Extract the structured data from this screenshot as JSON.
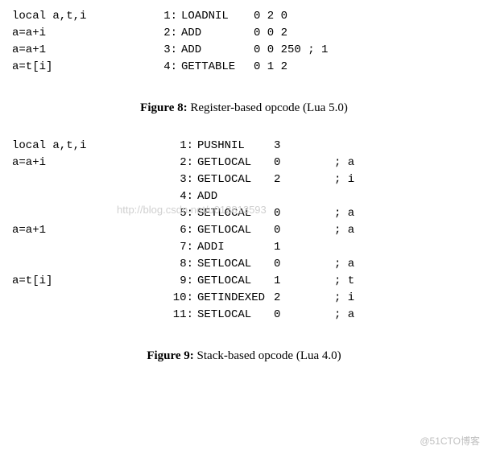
{
  "figure8": {
    "rows": [
      {
        "src": "local a,t,i",
        "num": "1:",
        "op": "LOADNIL",
        "args": "0 2 0",
        "cmt": ""
      },
      {
        "src": "a=a+i",
        "num": "2:",
        "op": "ADD",
        "args": "0 0 2",
        "cmt": ""
      },
      {
        "src": "a=a+1",
        "num": "3:",
        "op": "ADD",
        "args": "0 0 250 ; 1",
        "cmt": ""
      },
      {
        "src": "a=t[i]",
        "num": "4:",
        "op": "GETTABLE",
        "args": "0 1 2",
        "cmt": ""
      }
    ],
    "caption_label": "Figure 8:",
    "caption_text": " Register-based opcode (Lua 5.0)"
  },
  "figure9": {
    "rows": [
      {
        "src": "local a,t,i",
        "num": "1:",
        "op": "PUSHNIL",
        "args": "3",
        "cmt": ""
      },
      {
        "src": "a=a+i",
        "num": "2:",
        "op": "GETLOCAL",
        "args": "0",
        "cmt": "; a"
      },
      {
        "src": "",
        "num": "3:",
        "op": "GETLOCAL",
        "args": "2",
        "cmt": "; i"
      },
      {
        "src": "",
        "num": "4:",
        "op": "ADD",
        "args": "",
        "cmt": ""
      },
      {
        "src": "",
        "num": "5:",
        "op": "SETLOCAL",
        "args": "0",
        "cmt": "; a"
      },
      {
        "src": "a=a+1",
        "num": "6:",
        "op": "GETLOCAL",
        "args": "0",
        "cmt": "; a"
      },
      {
        "src": "",
        "num": "7:",
        "op": "ADDI",
        "args": "1",
        "cmt": ""
      },
      {
        "src": "",
        "num": "8:",
        "op": "SETLOCAL",
        "args": "0",
        "cmt": "; a"
      },
      {
        "src": "a=t[i]",
        "num": "9:",
        "op": "GETLOCAL",
        "args": "1",
        "cmt": "; t"
      },
      {
        "src": "",
        "num": "10:",
        "op": "GETINDEXED",
        "args": "2",
        "cmt": "; i"
      },
      {
        "src": "",
        "num": "11:",
        "op": "SETLOCAL",
        "args": "0",
        "cmt": "; a"
      }
    ],
    "caption_label": "Figure 9:",
    "caption_text": " Stack-based opcode (Lua 4.0)"
  },
  "watermark": "http://blog.csdn.net/u012813593",
  "footer_mark": "@51CTO博客"
}
